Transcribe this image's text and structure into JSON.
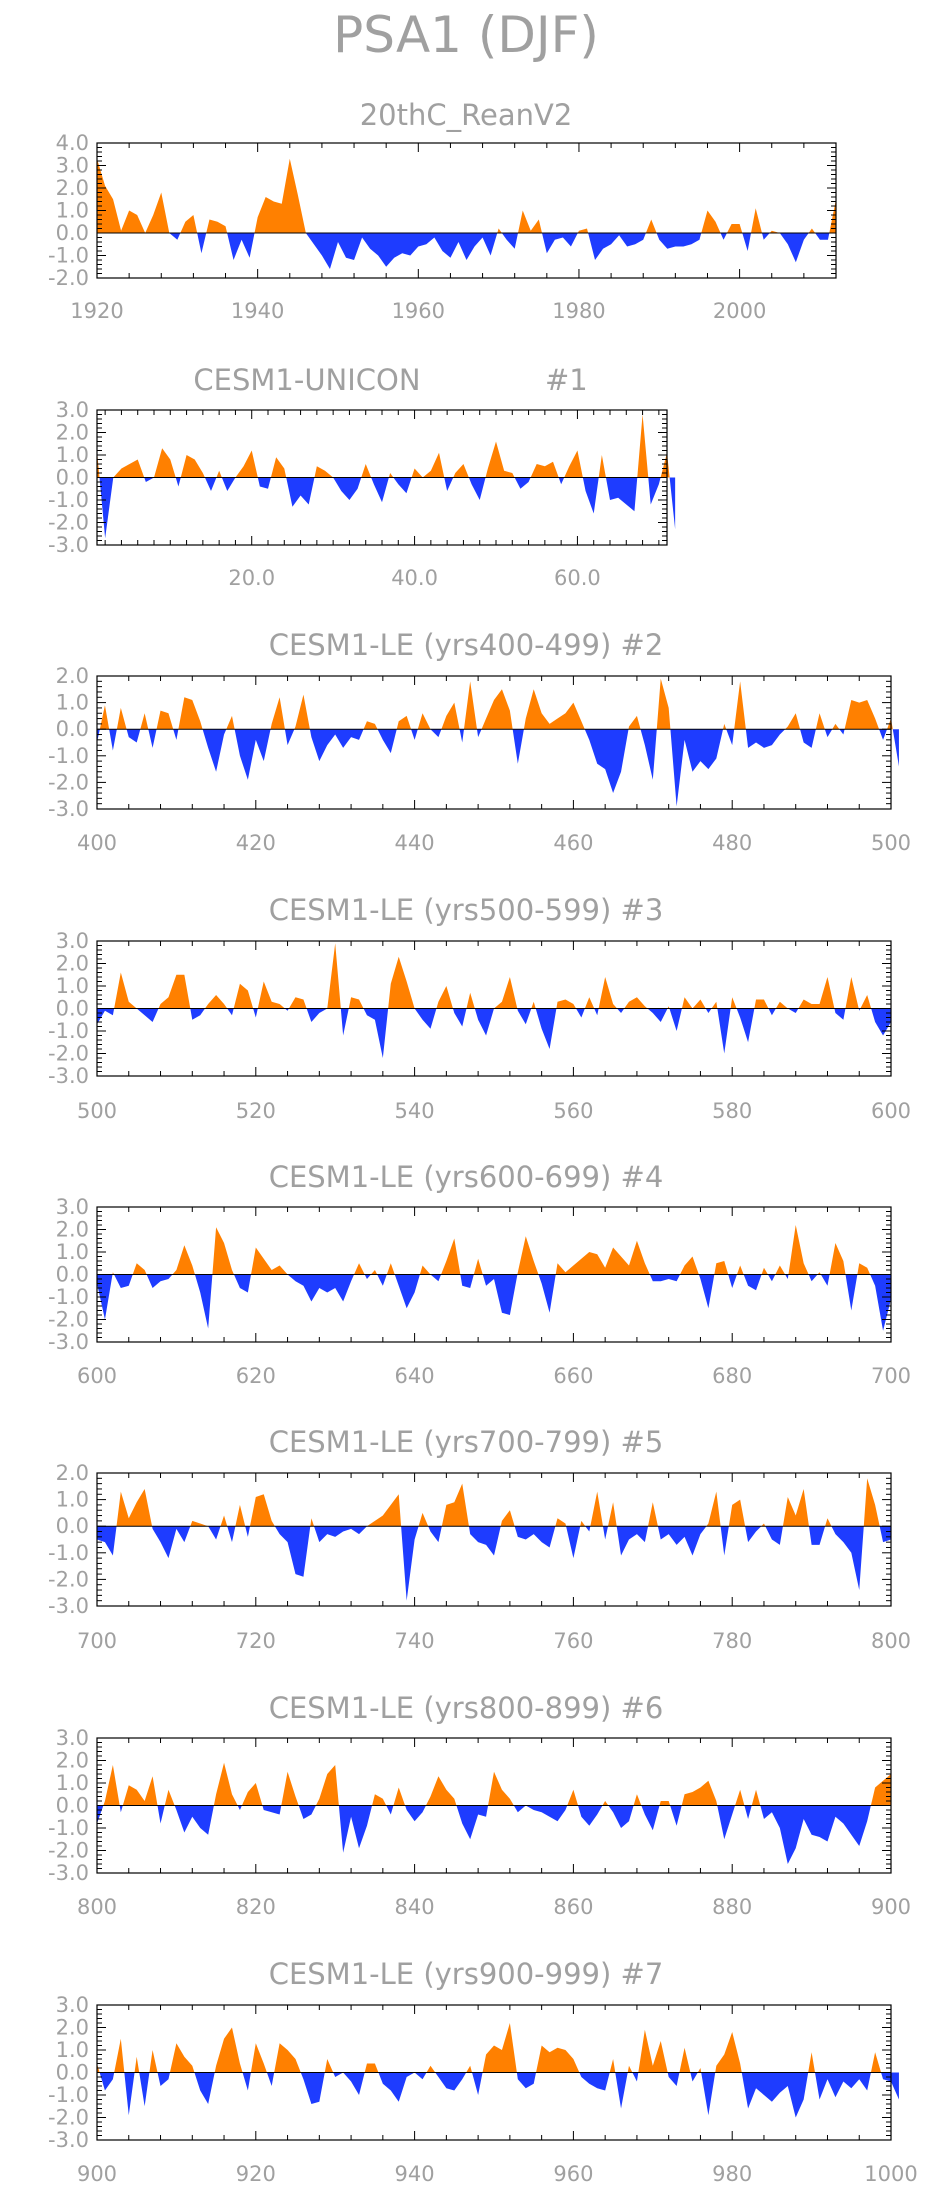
{
  "figure": {
    "title": "PSA1 (DJF)",
    "colors": {
      "positive": "#ff8000",
      "negative": "#1e3cff",
      "axis": "#000000",
      "text": "#a0a0a0"
    }
  },
  "chart_data": [
    {
      "type": "area",
      "title": "20thC_ReanV2",
      "subtitle": "",
      "xlim": [
        1920,
        2012
      ],
      "ylim": [
        -2.0,
        4.0
      ],
      "xticks": [
        1920,
        1940,
        1960,
        1980,
        2000
      ],
      "xticklabels": [
        "1920",
        "1940",
        "1960",
        "1980",
        "2000"
      ],
      "yticks": [
        4,
        3,
        2,
        1,
        0,
        -1,
        -2
      ],
      "yticklabels": [
        "4.0",
        "3.0",
        "2.0",
        "1.0",
        "0.0",
        "-1.0",
        "-2.0"
      ],
      "x_start": 1920,
      "values": [
        3.3,
        2.1,
        1.5,
        0.1,
        1.0,
        0.8,
        0.0,
        0.8,
        1.8,
        0.0,
        -0.3,
        0.5,
        0.8,
        -0.9,
        0.6,
        0.5,
        0.3,
        -1.2,
        -0.3,
        -1.1,
        0.7,
        1.6,
        1.4,
        1.3,
        3.3,
        1.7,
        0.0,
        -0.5,
        -1.0,
        -1.6,
        -0.4,
        -1.1,
        -1.2,
        -0.2,
        -0.7,
        -1.0,
        -1.5,
        -1.1,
        -0.9,
        -1.0,
        -0.6,
        -0.5,
        -0.2,
        -0.8,
        -1.1,
        -0.4,
        -1.2,
        -0.6,
        -0.2,
        -1.0,
        0.2,
        -0.3,
        -0.7,
        1.0,
        0.1,
        0.6,
        -0.9,
        -0.3,
        -0.2,
        -0.6,
        0.1,
        0.2,
        -1.2,
        -0.7,
        -0.5,
        -0.1,
        -0.6,
        -0.5,
        -0.3,
        0.6,
        -0.3,
        -0.7,
        -0.6,
        -0.6,
        -0.5,
        -0.3,
        1.0,
        0.5,
        -0.3,
        0.4,
        0.4,
        -0.8,
        1.1,
        -0.3,
        0.1,
        0.0,
        -0.5,
        -1.3,
        -0.3,
        0.2,
        -0.3,
        -0.3,
        1.5
      ]
    },
    {
      "type": "area",
      "title": "CESM1-UNICON",
      "subtitle": "#1",
      "xlim": [
        1,
        71
      ],
      "ylim": [
        -3.0,
        3.0
      ],
      "xticks": [
        20,
        40,
        60
      ],
      "xticklabels": [
        "20.0",
        "40.0",
        "60.0"
      ],
      "yticks": [
        3,
        2,
        1,
        0,
        -1,
        -2,
        -3
      ],
      "yticklabels": [
        "3.0",
        "2.0",
        "1.0",
        "0.0",
        "-1.0",
        "-2.0",
        "-3.0"
      ],
      "x_start": 1,
      "values": [
        1.2,
        -2.7,
        0.0,
        0.4,
        0.6,
        0.8,
        -0.2,
        0.0,
        1.3,
        0.8,
        -0.4,
        1.0,
        0.8,
        0.2,
        -0.6,
        0.3,
        -0.6,
        0.0,
        0.5,
        1.2,
        -0.4,
        -0.5,
        0.9,
        0.4,
        -1.3,
        -0.8,
        -1.2,
        0.5,
        0.3,
        0.0,
        -0.6,
        -1.0,
        -0.5,
        0.6,
        -0.3,
        -1.1,
        0.2,
        -0.3,
        -0.7,
        0.4,
        0.0,
        0.3,
        1.1,
        -0.6,
        0.2,
        0.6,
        -0.3,
        -1.0,
        0.4,
        1.6,
        0.3,
        0.2,
        -0.5,
        -0.2,
        0.6,
        0.5,
        0.7,
        -0.3,
        0.5,
        1.2,
        -0.6,
        -1.6,
        1.0,
        -1.0,
        -0.9,
        -1.2,
        -1.5,
        2.8,
        -1.2,
        -0.3,
        1.1,
        -2.3
      ]
    },
    {
      "type": "area",
      "title": "CESM1-LE (yrs400-499)",
      "subtitle": "#2",
      "xlim": [
        400,
        500
      ],
      "ylim": [
        -3.0,
        2.0
      ],
      "xticks": [
        400,
        420,
        440,
        460,
        480,
        500
      ],
      "xticklabels": [
        "400",
        "420",
        "440",
        "460",
        "480",
        "500"
      ],
      "yticks": [
        2,
        1,
        0,
        -1,
        -2,
        -3
      ],
      "yticklabels": [
        "2.0",
        "1.0",
        "0.0",
        "-1.0",
        "-2.0",
        "-3.0"
      ],
      "x_start": 400,
      "values": [
        -0.5,
        0.9,
        -0.8,
        0.8,
        -0.3,
        -0.5,
        0.6,
        -0.7,
        0.7,
        0.6,
        -0.4,
        1.2,
        1.1,
        0.3,
        -0.7,
        -1.6,
        -0.2,
        0.5,
        -1.0,
        -1.9,
        -0.4,
        -1.2,
        0.2,
        1.2,
        -0.6,
        0.1,
        1.3,
        -0.3,
        -1.2,
        -0.6,
        -0.2,
        -0.7,
        -0.3,
        -0.4,
        0.3,
        0.2,
        -0.4,
        -0.9,
        0.3,
        0.5,
        -0.4,
        0.6,
        0.0,
        -0.3,
        0.5,
        1.0,
        -0.5,
        1.8,
        -0.3,
        0.4,
        1.1,
        1.5,
        0.7,
        -1.3,
        0.4,
        1.5,
        0.6,
        0.2,
        0.4,
        0.6,
        1.0,
        0.3,
        -0.4,
        -1.3,
        -1.5,
        -2.4,
        -1.6,
        0.1,
        0.5,
        -0.6,
        -1.9,
        1.9,
        0.8,
        -2.9,
        -0.4,
        -1.6,
        -1.2,
        -1.5,
        -1.1,
        0.2,
        -0.6,
        1.8,
        -0.7,
        -0.5,
        -0.7,
        -0.6,
        -0.2,
        0.1,
        0.6,
        -0.5,
        -0.7,
        0.6,
        -0.3,
        0.2,
        -0.2,
        1.1,
        1.0,
        1.1,
        0.4,
        -0.4,
        0.4,
        -1.4
      ]
    },
    {
      "type": "area",
      "title": "CESM1-LE (yrs500-599)",
      "subtitle": "#3",
      "xlim": [
        500,
        600
      ],
      "ylim": [
        -3.0,
        3.0
      ],
      "xticks": [
        500,
        520,
        540,
        560,
        580,
        600
      ],
      "xticklabels": [
        "500",
        "520",
        "540",
        "560",
        "580",
        "600"
      ],
      "yticks": [
        3,
        2,
        1,
        0,
        -1,
        -2,
        -3
      ],
      "yticklabels": [
        "3.0",
        "2.0",
        "1.0",
        "0.0",
        "-1.0",
        "-2.0",
        "-3.0"
      ],
      "x_start": 500,
      "values": [
        -0.7,
        -0.1,
        -0.3,
        1.6,
        0.3,
        0.0,
        -0.3,
        -0.6,
        0.2,
        0.5,
        1.5,
        1.5,
        -0.5,
        -0.3,
        0.2,
        0.6,
        0.2,
        -0.3,
        1.1,
        0.8,
        -0.4,
        1.2,
        0.3,
        0.2,
        -0.1,
        0.5,
        0.4,
        -0.6,
        -0.2,
        0.0,
        2.9,
        -1.2,
        0.5,
        0.4,
        -0.3,
        -0.5,
        -2.2,
        1.1,
        2.3,
        1.2,
        0.0,
        -0.5,
        -0.9,
        0.3,
        1.0,
        -0.2,
        -0.8,
        0.7,
        -0.5,
        -1.2,
        0.0,
        0.3,
        1.4,
        -0.1,
        -0.7,
        0.3,
        -0.9,
        -1.8,
        0.3,
        0.4,
        0.2,
        -0.4,
        0.5,
        -0.3,
        1.4,
        0.2,
        -0.2,
        0.3,
        0.5,
        0.1,
        -0.2,
        -0.6,
        0.1,
        -1.0,
        0.5,
        0.0,
        0.4,
        -0.2,
        0.3,
        -2.0,
        0.5,
        -0.4,
        -1.5,
        0.4,
        0.4,
        -0.3,
        0.3,
        0.0,
        -0.2,
        0.4,
        0.2,
        0.2,
        1.4,
        -0.2,
        -0.5,
        1.4,
        -0.1,
        0.6,
        -0.6,
        -1.2,
        -0.6
      ]
    },
    {
      "type": "area",
      "title": "CESM1-LE (yrs600-699)",
      "subtitle": "#4",
      "xlim": [
        600,
        700
      ],
      "ylim": [
        -3.0,
        3.0
      ],
      "xticks": [
        600,
        620,
        640,
        660,
        680,
        700
      ],
      "xticklabels": [
        "600",
        "620",
        "640",
        "660",
        "680",
        "700"
      ],
      "yticks": [
        3,
        2,
        1,
        0,
        -1,
        -2,
        -3
      ],
      "yticklabels": [
        "3.0",
        "2.0",
        "1.0",
        "0.0",
        "-1.0",
        "-2.0",
        "-3.0"
      ],
      "x_start": 600,
      "values": [
        -0.4,
        -2.0,
        0.1,
        -0.6,
        -0.5,
        0.5,
        0.2,
        -0.6,
        -0.3,
        -0.2,
        0.2,
        1.3,
        0.4,
        -0.8,
        -2.4,
        2.1,
        1.4,
        0.2,
        -0.6,
        -0.8,
        1.2,
        0.7,
        0.2,
        0.4,
        0.0,
        -0.3,
        -0.5,
        -1.2,
        -0.6,
        -0.8,
        -0.6,
        -1.2,
        -0.3,
        0.5,
        -0.2,
        0.2,
        -0.5,
        0.5,
        -0.5,
        -1.5,
        -0.8,
        0.4,
        0.0,
        -0.3,
        0.6,
        1.6,
        -0.5,
        -0.6,
        0.7,
        -0.5,
        -0.2,
        -1.7,
        -1.8,
        0.1,
        1.7,
        0.6,
        -0.4,
        -1.7,
        0.5,
        0.1,
        0.4,
        0.7,
        1.0,
        0.9,
        0.3,
        1.2,
        0.8,
        0.4,
        1.5,
        0.5,
        -0.3,
        -0.3,
        -0.2,
        -0.3,
        0.4,
        0.8,
        -0.2,
        -1.5,
        0.5,
        0.6,
        -0.6,
        0.4,
        -0.5,
        -0.7,
        0.3,
        -0.3,
        0.4,
        -0.2,
        2.2,
        0.5,
        -0.3,
        0.1,
        -0.5,
        1.4,
        0.6,
        -1.6,
        0.5,
        0.3,
        -0.5,
        -2.5,
        -1.1
      ]
    },
    {
      "type": "area",
      "title": "CESM1-LE (yrs700-799)",
      "subtitle": "#5",
      "xlim": [
        700,
        800
      ],
      "ylim": [
        -3.0,
        2.0
      ],
      "xticks": [
        700,
        720,
        740,
        760,
        780,
        800
      ],
      "xticklabels": [
        "700",
        "720",
        "740",
        "760",
        "780",
        "800"
      ],
      "yticks": [
        2,
        1,
        0,
        -1,
        -2,
        -3
      ],
      "yticklabels": [
        "2.0",
        "1.0",
        "0.0",
        "-1.0",
        "-2.0",
        "-3.0"
      ],
      "x_start": 700,
      "values": [
        -0.5,
        -0.6,
        -1.1,
        1.3,
        0.3,
        0.9,
        1.4,
        -0.1,
        -0.6,
        -1.2,
        -0.1,
        -0.6,
        0.2,
        0.1,
        0.0,
        -0.5,
        0.4,
        -0.6,
        0.8,
        -0.4,
        1.1,
        1.2,
        0.2,
        -0.3,
        -0.6,
        -1.8,
        -1.9,
        0.3,
        -0.6,
        -0.3,
        -0.4,
        -0.2,
        -0.1,
        -0.3,
        0.0,
        0.2,
        0.4,
        0.8,
        1.2,
        -2.8,
        -0.5,
        0.5,
        -0.2,
        -0.6,
        0.8,
        0.9,
        1.6,
        -0.3,
        -0.6,
        -0.7,
        -1.1,
        0.2,
        0.6,
        -0.4,
        -0.5,
        -0.3,
        -0.6,
        -0.8,
        0.3,
        0.1,
        -1.2,
        0.2,
        -0.2,
        1.3,
        -0.5,
        0.9,
        -1.1,
        -0.5,
        -0.3,
        -0.6,
        0.9,
        -0.5,
        -0.3,
        -0.7,
        -0.4,
        -1.1,
        -0.3,
        0.1,
        1.3,
        -1.1,
        0.8,
        1.0,
        -0.6,
        -0.2,
        0.1,
        -0.5,
        -0.7,
        1.1,
        0.4,
        1.4,
        -0.7,
        -0.7,
        0.3,
        -0.3,
        -0.6,
        -1.0,
        -2.4,
        1.8,
        0.8,
        -0.6,
        -0.5
      ]
    },
    {
      "type": "area",
      "title": "CESM1-LE (yrs800-899)",
      "subtitle": "#6",
      "xlim": [
        800,
        900
      ],
      "ylim": [
        -3.0,
        3.0
      ],
      "xticks": [
        800,
        820,
        840,
        860,
        880,
        900
      ],
      "xticklabels": [
        "800",
        "820",
        "840",
        "860",
        "880",
        "900"
      ],
      "yticks": [
        3,
        2,
        1,
        0,
        -1,
        -2,
        -3
      ],
      "yticklabels": [
        "3.0",
        "2.0",
        "1.0",
        "0.0",
        "-1.0",
        "-2.0",
        "-3.0"
      ],
      "x_start": 800,
      "values": [
        -0.8,
        0.2,
        1.8,
        -0.3,
        0.9,
        0.7,
        0.2,
        1.3,
        -0.8,
        0.7,
        -0.2,
        -1.2,
        -0.5,
        -1.0,
        -1.3,
        0.5,
        1.9,
        0.5,
        -0.2,
        0.6,
        1.0,
        -0.2,
        -0.3,
        -0.4,
        1.5,
        0.4,
        -0.6,
        -0.4,
        0.3,
        1.4,
        1.8,
        -2.1,
        -0.5,
        -1.9,
        -0.9,
        0.5,
        0.3,
        -0.4,
        0.8,
        -0.2,
        -0.7,
        -0.3,
        0.4,
        1.3,
        0.7,
        0.3,
        -0.8,
        -1.5,
        -0.4,
        -0.5,
        1.5,
        0.7,
        0.3,
        -0.3,
        0.0,
        -0.2,
        -0.3,
        -0.5,
        -0.7,
        -0.2,
        0.7,
        -0.5,
        -0.9,
        -0.4,
        0.2,
        -0.3,
        -1.0,
        -0.7,
        0.5,
        -0.4,
        -1.1,
        0.2,
        0.2,
        -0.9,
        0.5,
        0.6,
        0.8,
        1.1,
        0.2,
        -1.5,
        -0.4,
        0.7,
        -0.6,
        0.7,
        -0.6,
        -0.3,
        -1.0,
        -2.6,
        -1.9,
        -0.6,
        -1.3,
        -1.4,
        -1.6,
        -0.5,
        -0.8,
        -1.3,
        -1.8,
        -0.7,
        0.8,
        1.1,
        1.4
      ]
    },
    {
      "type": "area",
      "title": "CESM1-LE (yrs900-999)",
      "subtitle": "#7",
      "xlim": [
        900,
        1000
      ],
      "ylim": [
        -3.0,
        3.0
      ],
      "xticks": [
        900,
        920,
        940,
        960,
        980,
        1000
      ],
      "xticklabels": [
        "900",
        "920",
        "940",
        "960",
        "980",
        "1000"
      ],
      "yticks": [
        3,
        2,
        1,
        0,
        -1,
        -2,
        -3
      ],
      "yticklabels": [
        "3.0",
        "2.0",
        "1.0",
        "0.0",
        "-1.0",
        "-2.0",
        "-3.0"
      ],
      "x_start": 900,
      "values": [
        0.4,
        -0.8,
        -0.3,
        1.5,
        -1.9,
        0.7,
        -1.5,
        1.0,
        -0.6,
        -0.3,
        1.3,
        0.7,
        0.3,
        -0.8,
        -1.4,
        0.3,
        1.5,
        2.0,
        0.4,
        -0.8,
        1.3,
        0.4,
        -0.6,
        1.3,
        1.0,
        0.6,
        -0.3,
        -1.4,
        -1.3,
        0.6,
        -0.2,
        0.0,
        -0.4,
        -1.0,
        0.4,
        0.4,
        -0.5,
        -0.8,
        -1.3,
        -0.2,
        0.0,
        -0.3,
        0.3,
        -0.2,
        -0.7,
        -0.8,
        -0.3,
        0.3,
        -1.0,
        0.8,
        1.2,
        1.0,
        2.2,
        -0.3,
        -0.7,
        -0.5,
        1.2,
        0.9,
        1.1,
        1.0,
        0.6,
        -0.2,
        -0.5,
        -0.7,
        -0.8,
        0.6,
        -1.6,
        0.3,
        -0.4,
        1.9,
        0.3,
        1.4,
        -0.2,
        -0.6,
        1.1,
        -0.4,
        0.2,
        -1.9,
        0.3,
        0.8,
        1.8,
        0.4,
        -1.6,
        -0.7,
        -1.0,
        -1.3,
        -0.9,
        -0.6,
        -2.0,
        -1.2,
        0.9,
        -1.2,
        -0.3,
        -1.1,
        -0.4,
        -0.7,
        -0.3,
        -0.8,
        0.9,
        -0.3,
        -0.4,
        -1.2
      ]
    }
  ]
}
